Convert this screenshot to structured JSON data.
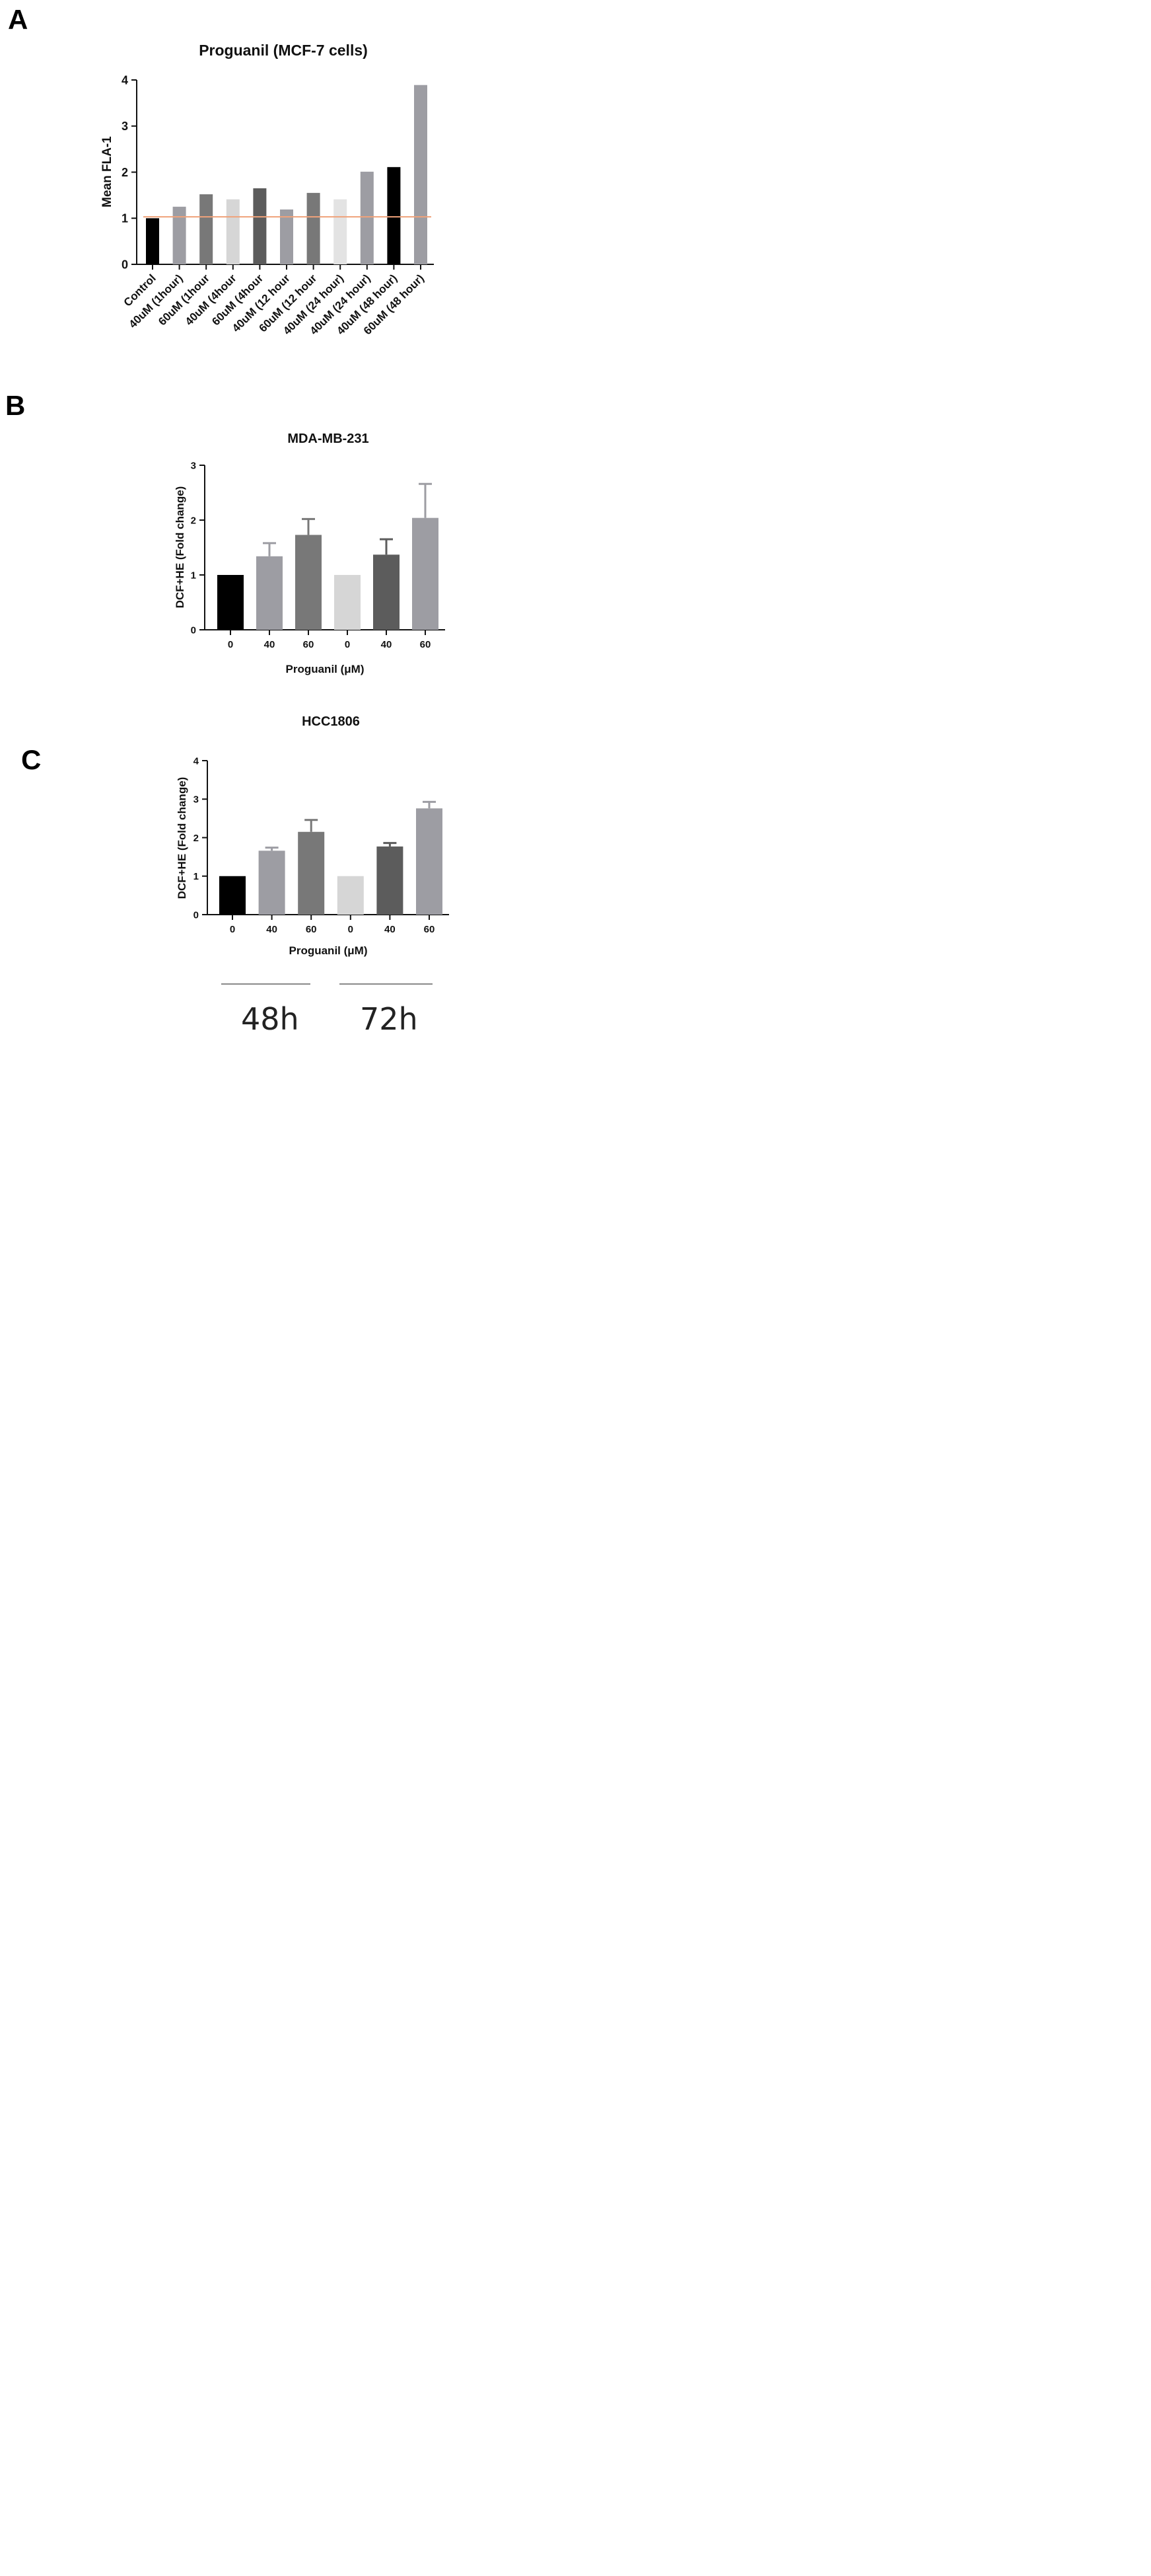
{
  "panels": {
    "a": "A",
    "b": "B",
    "c": "C"
  },
  "time_labels": {
    "first": "48h",
    "second": "72h"
  },
  "colors": {
    "black": "#000000",
    "mid_gray": "#9d9da3",
    "dark_gray": "#787878",
    "light_gray": "#d6d6d6",
    "charcoal": "#5c5c5c",
    "reference_line": "#f0a27a",
    "timeline": "#8a8a8a"
  },
  "chart_data": [
    {
      "id": "A",
      "type": "bar",
      "title": "Proguanil (MCF-7 cells)",
      "ylabel": "Mean FLA-1",
      "xlabel": "",
      "ylim": [
        0,
        4
      ],
      "yticks": [
        0,
        1,
        2,
        3,
        4
      ],
      "reference_line": 1.03,
      "categories": [
        "Control",
        "40uM (1hour)",
        "60uM (1hour",
        "40uM (4hour",
        "60uM (4hour",
        "40uM (12 hour",
        "60uM (12 hour",
        "40uM (24 hour)",
        "40uM (24 hour)",
        "40uM (48 hour)",
        "60uM (48 hour)"
      ],
      "values": [
        1.0,
        1.25,
        1.52,
        1.41,
        1.65,
        1.19,
        1.55,
        1.41,
        2.01,
        2.11,
        3.89
      ],
      "bar_colors": [
        "#000000",
        "#9d9da3",
        "#787878",
        "#d6d6d6",
        "#5c5c5c",
        "#9d9da3",
        "#787878",
        "#e3e3e3",
        "#9d9da3",
        "#000000",
        "#9d9da3"
      ]
    },
    {
      "id": "B",
      "type": "bar",
      "title": "MDA-MB-231",
      "ylabel": "DCF+HE (Fold change)",
      "xlabel": "Proguanil (μM)",
      "ylim": [
        0,
        3
      ],
      "yticks": [
        0,
        1,
        2,
        3
      ],
      "categories": [
        "0",
        "40",
        "60",
        "0",
        "40",
        "60"
      ],
      "values": [
        1.0,
        1.34,
        1.73,
        1.0,
        1.37,
        2.04
      ],
      "errors": [
        0,
        0.24,
        0.29,
        0,
        0.28,
        0.62
      ],
      "bar_colors": [
        "#000000",
        "#9d9da3",
        "#787878",
        "#d6d6d6",
        "#5c5c5c",
        "#9d9da3"
      ]
    },
    {
      "id": "C",
      "type": "bar",
      "title": "HCC1806",
      "ylabel": "DCF+HE (Fold change)",
      "xlabel": "Proguanil (μM)",
      "ylim": [
        0,
        4
      ],
      "yticks": [
        0,
        1,
        2,
        3,
        4
      ],
      "categories": [
        "0",
        "40",
        "60",
        "0",
        "40",
        "60"
      ],
      "values": [
        1.0,
        1.66,
        2.15,
        1.0,
        1.77,
        2.76
      ],
      "errors": [
        0,
        0.08,
        0.31,
        0,
        0.09,
        0.17
      ],
      "bar_colors": [
        "#000000",
        "#9d9da3",
        "#787878",
        "#d6d6d6",
        "#5c5c5c",
        "#9d9da3"
      ]
    }
  ]
}
